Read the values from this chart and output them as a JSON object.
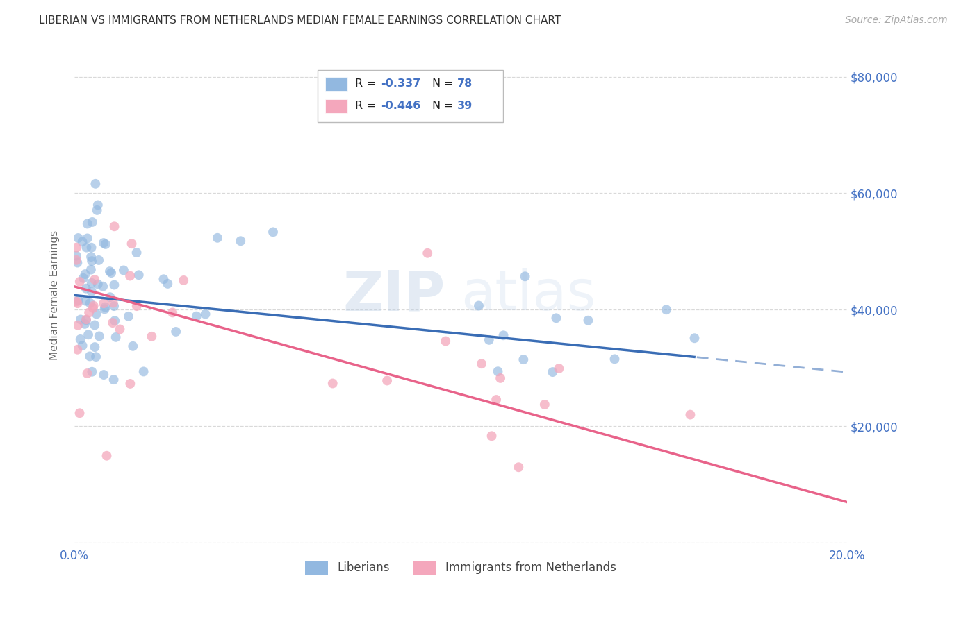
{
  "title": "LIBERIAN VS IMMIGRANTS FROM NETHERLANDS MEDIAN FEMALE EARNINGS CORRELATION CHART",
  "source": "Source: ZipAtlas.com",
  "ylabel": "Median Female Earnings",
  "xlim": [
    0.0,
    0.2
  ],
  "ylim": [
    0,
    85000
  ],
  "yticks": [
    0,
    20000,
    40000,
    60000,
    80000
  ],
  "ytick_labels_right": [
    "",
    "$20,000",
    "$40,000",
    "$60,000",
    "$80,000"
  ],
  "xticks": [
    0.0,
    0.05,
    0.1,
    0.15,
    0.2
  ],
  "xtick_labels": [
    "0.0%",
    "",
    "",
    "",
    "20.0%"
  ],
  "blue_color": "#92b8e0",
  "pink_color": "#f4a7bc",
  "blue_line_color": "#3a6db5",
  "pink_line_color": "#e8638a",
  "title_color": "#333333",
  "axis_label_color": "#666666",
  "tick_label_color": "#4472c4",
  "grid_color": "#d0d0d0",
  "watermark_zip": "ZIP",
  "watermark_atlas": "atlas",
  "R_liberian": -0.337,
  "N_liberian": 78,
  "R_netherlands": -0.446,
  "N_netherlands": 39,
  "lib_intercept": 42500,
  "lib_slope": -75000,
  "neth_intercept": 44000,
  "neth_slope": -200000
}
